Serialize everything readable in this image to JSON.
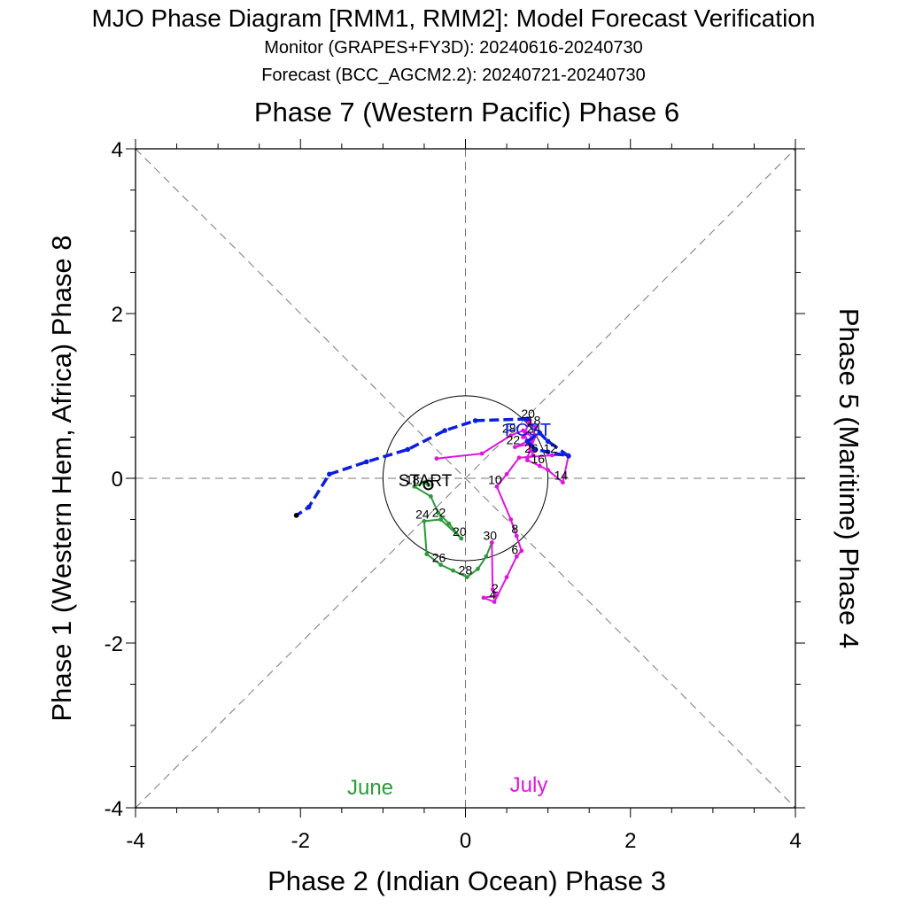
{
  "chart_data": {
    "type": "scatter",
    "title": "MJO Phase Diagram [RMM1, RMM2]: Model Forecast Verification",
    "subtitles": [
      "Monitor (GRAPES+FY3D): 20240616-20240730",
      "Forecast (BCC_AGCM2.2): 20240721-20240730"
    ],
    "top_label": "Phase 7 (Western Pacific) Phase 6",
    "bottom_label": "Phase 2 (Indian Ocean) Phase 3",
    "left_label": "Phase 1 (Western Hem, Africa) Phase 8",
    "right_label": "Phase 5 (Maritime) Phase 4",
    "xlim": [
      -4,
      4
    ],
    "ylim": [
      -4,
      4
    ],
    "x_ticks": [
      "-4",
      "-2",
      "0",
      "2",
      "4"
    ],
    "y_ticks": [
      "4",
      "2",
      "0",
      "-2",
      "-4"
    ],
    "unit_circle_radius": 1,
    "start_label": "START",
    "fcst_label": "FCST",
    "colors": {
      "june": "#2a9a3a",
      "july": "#e014e0",
      "forecast": "#0a1ee0",
      "guides": "#777777"
    },
    "series": [
      {
        "name": "June",
        "points": [
          {
            "x": -0.45,
            "y": -0.08
          },
          {
            "x": -0.5,
            "y": -0.05
          },
          {
            "x": -0.62,
            "y": -0.1,
            "label": "18"
          },
          {
            "x": -0.42,
            "y": -0.22
          },
          {
            "x": -0.33,
            "y": -0.42
          },
          {
            "x": -0.2,
            "y": -0.55
          },
          {
            "x": -0.05,
            "y": -0.73,
            "label": "20"
          },
          {
            "x": -0.3,
            "y": -0.5,
            "label": "22"
          },
          {
            "x": -0.5,
            "y": -0.52,
            "label": "24"
          },
          {
            "x": -0.47,
            "y": -0.92
          },
          {
            "x": -0.3,
            "y": -1.05,
            "label": "26"
          },
          {
            "x": -0.15,
            "y": -1.12
          },
          {
            "x": 0.02,
            "y": -1.2,
            "label": "28"
          },
          {
            "x": 0.15,
            "y": -1.1
          },
          {
            "x": 0.25,
            "y": -0.95
          },
          {
            "x": 0.32,
            "y": -0.78,
            "label": "30"
          }
        ]
      },
      {
        "name": "July",
        "points": [
          {
            "x": 0.32,
            "y": -0.78
          },
          {
            "x": 0.33,
            "y": -1.35
          },
          {
            "x": 0.38,
            "y": -1.42,
            "label": "2"
          },
          {
            "x": 0.22,
            "y": -1.45
          },
          {
            "x": 0.35,
            "y": -1.5,
            "label": "4"
          },
          {
            "x": 0.5,
            "y": -1.2
          },
          {
            "x": 0.62,
            "y": -0.95,
            "label": "6"
          },
          {
            "x": 0.68,
            "y": -0.88
          },
          {
            "x": 0.62,
            "y": -0.7,
            "label": "8"
          },
          {
            "x": 0.55,
            "y": -0.5
          },
          {
            "x": 0.38,
            "y": -0.1,
            "label": "10"
          },
          {
            "x": 0.5,
            "y": 0.05
          },
          {
            "x": 0.65,
            "y": 0.25
          },
          {
            "x": 1.05,
            "y": 0.28,
            "label": "12"
          },
          {
            "x": 1.25,
            "y": 0.28
          },
          {
            "x": 1.18,
            "y": -0.05,
            "label": "14"
          },
          {
            "x": 1.0,
            "y": 0.1
          },
          {
            "x": 0.9,
            "y": 0.15,
            "label": "16"
          },
          {
            "x": 0.75,
            "y": 0.22
          },
          {
            "x": 0.8,
            "y": 0.45
          },
          {
            "x": 0.85,
            "y": 0.62,
            "label": "18"
          },
          {
            "x": 0.75,
            "y": 0.7
          },
          {
            "x": 0.78,
            "y": 0.7,
            "label": "20"
          },
          {
            "x": 0.7,
            "y": 0.5
          },
          {
            "x": 0.75,
            "y": 0.55
          },
          {
            "x": 0.82,
            "y": 0.48
          },
          {
            "x": 0.6,
            "y": 0.38,
            "label": "22"
          },
          {
            "x": 0.8,
            "y": 0.42
          },
          {
            "x": 0.85,
            "y": 0.52,
            "label": "24"
          },
          {
            "x": 0.75,
            "y": 0.25
          },
          {
            "x": 0.82,
            "y": 0.28,
            "label": "26"
          },
          {
            "x": 0.7,
            "y": 0.58
          },
          {
            "x": 0.55,
            "y": 0.52,
            "label": "28"
          },
          {
            "x": 0.2,
            "y": 0.3
          },
          {
            "x": -0.35,
            "y": 0.24
          }
        ]
      },
      {
        "name": "Forecast",
        "points": [
          {
            "x": 0.75,
            "y": 0.72
          },
          {
            "x": 0.12,
            "y": 0.7
          },
          {
            "x": -0.25,
            "y": 0.58
          },
          {
            "x": -0.7,
            "y": 0.35
          },
          {
            "x": -1.2,
            "y": 0.2
          },
          {
            "x": -1.65,
            "y": 0.05
          },
          {
            "x": -1.9,
            "y": -0.35
          },
          {
            "x": -2.05,
            "y": -0.45
          }
        ]
      },
      {
        "name": "Forecast-secondary",
        "points": [
          {
            "x": 0.75,
            "y": 0.45
          },
          {
            "x": 0.9,
            "y": 0.55
          },
          {
            "x": 1.0,
            "y": 0.45
          },
          {
            "x": 1.25,
            "y": 0.27
          },
          {
            "x": 1.0,
            "y": 0.32
          },
          {
            "x": 0.85,
            "y": 0.35
          },
          {
            "x": 0.75,
            "y": 0.45
          }
        ]
      }
    ],
    "legend": [
      {
        "label": "June",
        "color": "#2a9a3a"
      },
      {
        "label": "July",
        "color": "#e014e0"
      }
    ]
  }
}
